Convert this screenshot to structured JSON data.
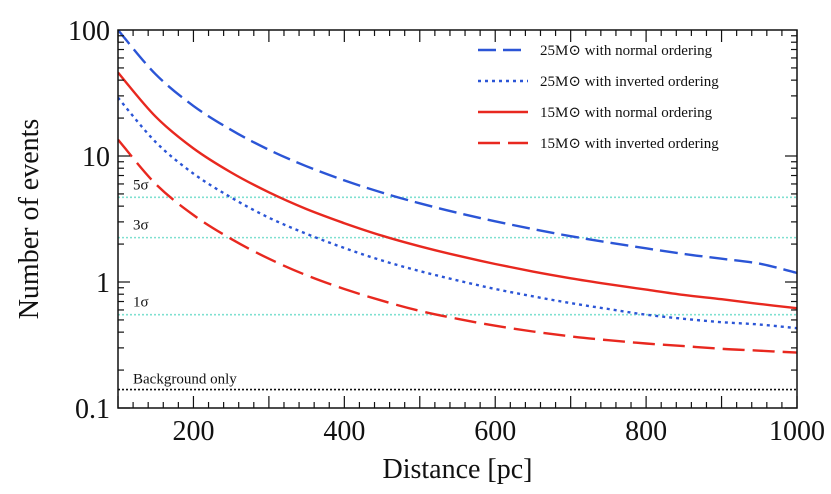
{
  "chart_data": {
    "type": "line",
    "title": "",
    "xlabel": "Distance [pc]",
    "ylabel": "Number of events",
    "xlim": [
      100,
      1000
    ],
    "ylim": [
      0.1,
      100
    ],
    "yscale": "log",
    "x_ticks": [
      200,
      400,
      600,
      800,
      1000
    ],
    "x_tick_labels": [
      "200",
      "400",
      "600",
      "800",
      "1000"
    ],
    "y_ticks": [
      0.1,
      1,
      10,
      100
    ],
    "y_tick_labels": [
      "0.1",
      "1",
      "10",
      "100"
    ],
    "legend_position": "top-right",
    "x": [
      100,
      150,
      200,
      250,
      300,
      350,
      400,
      450,
      500,
      550,
      600,
      650,
      700,
      750,
      800,
      850,
      900,
      950,
      1000
    ],
    "series": [
      {
        "name": "25M",
        "suffix": "with normal ordering",
        "color": "#2b55d6",
        "style": "dashdot",
        "values": [
          100,
          44.5,
          25,
          16.1,
          11.2,
          8.29,
          6.4,
          5.12,
          4.21,
          3.54,
          3.03,
          2.63,
          2.31,
          2.06,
          1.85,
          1.67,
          1.53,
          1.4,
          1.18
        ]
      },
      {
        "name": "25M",
        "suffix": "with inverted ordering",
        "color": "#2b55d6",
        "style": "dotted",
        "values": [
          29,
          12.9,
          7.25,
          4.68,
          3.24,
          2.41,
          1.86,
          1.48,
          1.22,
          1.03,
          0.88,
          0.77,
          0.68,
          0.61,
          0.55,
          0.51,
          0.48,
          0.46,
          0.43
        ]
      },
      {
        "name": "15M",
        "suffix": "with normal ordering",
        "color": "#e8281f",
        "style": "solid",
        "values": [
          46,
          20.5,
          11.5,
          7.4,
          5.15,
          3.79,
          2.93,
          2.33,
          1.92,
          1.62,
          1.39,
          1.21,
          1.07,
          0.96,
          0.87,
          0.79,
          0.73,
          0.67,
          0.62
        ]
      },
      {
        "name": "15M",
        "suffix": "with inverted ordering",
        "color": "#e8281f",
        "style": "dashed",
        "values": [
          13.5,
          6.0,
          3.4,
          2.2,
          1.53,
          1.13,
          0.88,
          0.71,
          0.59,
          0.51,
          0.45,
          0.405,
          0.37,
          0.345,
          0.325,
          0.31,
          0.295,
          0.285,
          0.275
        ]
      }
    ],
    "significance_lines": [
      {
        "label": "5σ",
        "value": 4.7,
        "color": "#7fe0d0"
      },
      {
        "label": "3σ",
        "value": 2.25,
        "color": "#7fe0d0"
      },
      {
        "label": "1σ",
        "value": 0.55,
        "color": "#7fe0d0"
      }
    ],
    "background_line": {
      "label": "Background only",
      "value": 0.14,
      "color": "#111111"
    },
    "sun_symbol": "⊙"
  }
}
